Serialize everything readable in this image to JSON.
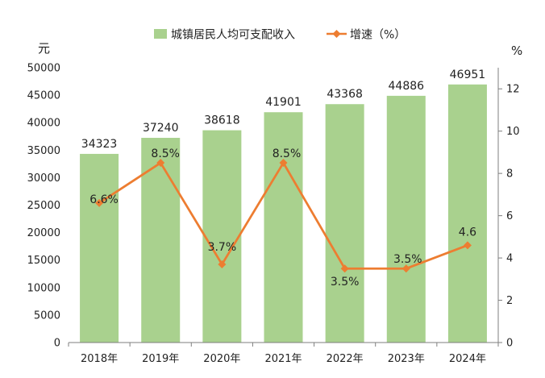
{
  "chart_data": {
    "type": "bar",
    "categories": [
      "2018年",
      "2019年",
      "2020年",
      "2021年",
      "2022年",
      "2023年",
      "2024年"
    ],
    "series": [
      {
        "name": "城镇居民人均可支配收入",
        "type": "bar",
        "axis": "left",
        "values": [
          34323,
          37240,
          38618,
          41901,
          43368,
          44886,
          46951
        ],
        "labels": [
          "34323",
          "37240",
          "38618",
          "41901",
          "43368",
          "44886",
          "46951"
        ]
      },
      {
        "name": "增速（%）",
        "type": "line",
        "axis": "right",
        "values": [
          6.6,
          8.5,
          3.7,
          8.5,
          3.5,
          3.5,
          4.6
        ],
        "labels": [
          "6.6%",
          "8.5%",
          "3.7%",
          "8.5%",
          "3.5%",
          "3.5%",
          "4.6"
        ]
      }
    ],
    "yleft": {
      "unit": "元",
      "lim": [
        0,
        50000
      ],
      "ticks": [
        "0",
        "5000",
        "10000",
        "15000",
        "20000",
        "25000",
        "30000",
        "35000",
        "40000",
        "45000",
        "50000"
      ]
    },
    "yright": {
      "unit": "%",
      "lim": [
        0,
        13
      ],
      "ticks": [
        "0",
        "2",
        "4",
        "6",
        "8",
        "10",
        "12"
      ]
    },
    "legend": {
      "position": "top"
    },
    "grid": false,
    "colors": {
      "bar": "#a9d18e",
      "line": "#ed7d31",
      "axis": "#7f7f7f"
    }
  }
}
